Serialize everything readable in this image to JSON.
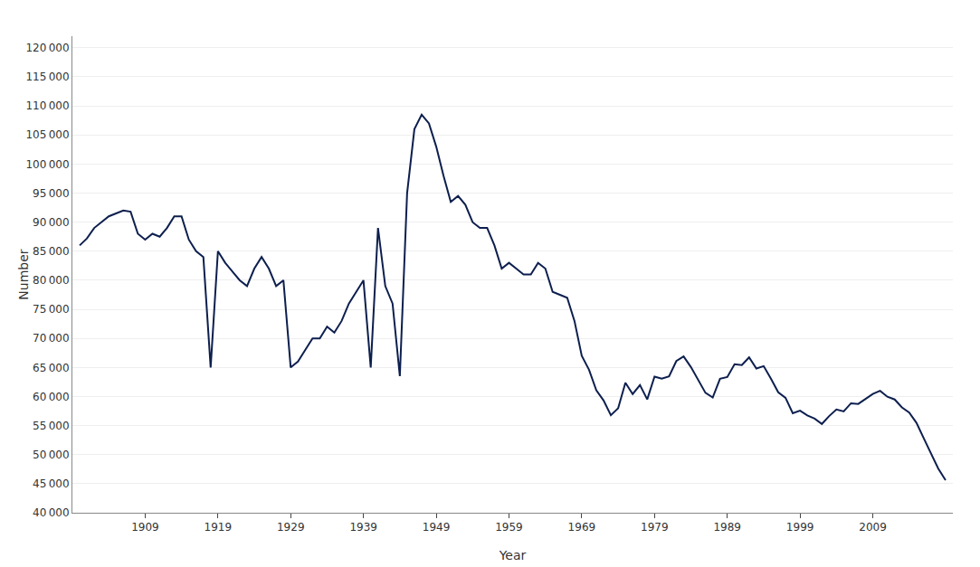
{
  "chart_data": {
    "type": "line",
    "ylabel": "Number",
    "xlabel": "Year",
    "color": "#0d1f4e",
    "grid": "y",
    "xlim": [
      1899,
      2020
    ],
    "xticks": [
      1909,
      1919,
      1929,
      1939,
      1949,
      1959,
      1969,
      1979,
      1989,
      1999,
      2009
    ],
    "ylim": [
      40000,
      122000
    ],
    "yticks": [
      {
        "value": 40000,
        "label": "40 000"
      },
      {
        "value": 45000,
        "label": "45 000"
      },
      {
        "value": 50000,
        "label": "50 000"
      },
      {
        "value": 55000,
        "label": "55 000"
      },
      {
        "value": 60000,
        "label": "60 000"
      },
      {
        "value": 65000,
        "label": "65 000"
      },
      {
        "value": 70000,
        "label": "70 000"
      },
      {
        "value": 75000,
        "label": "75 000"
      },
      {
        "value": 80000,
        "label": "80 000"
      },
      {
        "value": 85000,
        "label": "85 000"
      },
      {
        "value": 90000,
        "label": "90 000"
      },
      {
        "value": 95000,
        "label": "95 000"
      },
      {
        "value": 100000,
        "label": "100 000"
      },
      {
        "value": 105000,
        "label": "105 000"
      },
      {
        "value": 110000,
        "label": "110 000"
      },
      {
        "value": 115000,
        "label": "115 000"
      },
      {
        "value": 120000,
        "label": "120 000"
      }
    ],
    "x": [
      1900,
      1901,
      1902,
      1903,
      1904,
      1905,
      1906,
      1907,
      1908,
      1909,
      1910,
      1911,
      1912,
      1913,
      1914,
      1915,
      1916,
      1917,
      1918,
      1919,
      1920,
      1921,
      1922,
      1923,
      1924,
      1925,
      1926,
      1927,
      1928,
      1929,
      1930,
      1931,
      1932,
      1933,
      1934,
      1935,
      1936,
      1937,
      1938,
      1939,
      1940,
      1941,
      1942,
      1943,
      1944,
      1945,
      1946,
      1947,
      1948,
      1949,
      1950,
      1951,
      1952,
      1953,
      1954,
      1955,
      1956,
      1957,
      1958,
      1959,
      1960,
      1961,
      1962,
      1963,
      1964,
      1965,
      1966,
      1967,
      1968,
      1969,
      1970,
      1971,
      1972,
      1973,
      1974,
      1975,
      1976,
      1977,
      1978,
      1979,
      1980,
      1981,
      1982,
      1983,
      1984,
      1985,
      1986,
      1987,
      1988,
      1989,
      1990,
      1991,
      1992,
      1993,
      1994,
      1995,
      1996,
      1997,
      1998,
      1999,
      2000,
      2001,
      2002,
      2003,
      2004,
      2005,
      2006,
      2007,
      2008,
      2009,
      2010,
      2011,
      2012,
      2013,
      2014,
      2015,
      2016,
      2017,
      2018,
      2019
    ],
    "values": [
      86000,
      87200,
      89000,
      90000,
      91000,
      91500,
      92000,
      91800,
      88000,
      87000,
      88000,
      87500,
      89000,
      91000,
      91000,
      87000,
      85000,
      84000,
      65000,
      85000,
      83000,
      81500,
      80000,
      79000,
      82000,
      84000,
      82000,
      79000,
      80000,
      65000,
      66000,
      68000,
      70000,
      70000,
      72000,
      71000,
      73000,
      76000,
      78000,
      80000,
      65000,
      89000,
      79000,
      76000,
      63500,
      95000,
      106000,
      108500,
      107000,
      103000,
      98000,
      93500,
      94500,
      93000,
      90000,
      89000,
      89000,
      86000,
      82000,
      83000,
      82000,
      81000,
      81000,
      83000,
      82000,
      78000,
      77500,
      77000,
      73000,
      67000,
      64600,
      61067,
      59321,
      56787,
      57979,
      62373,
      60428,
      61960,
      59512,
      63428,
      63067,
      63469,
      66106,
      66892,
      65076,
      62796,
      60632,
      59827,
      63049,
      63348,
      65549,
      65395,
      66731,
      64826,
      65231,
      63067,
      60723,
      59771,
      57108,
      57574,
      56742,
      56189,
      55280,
      56630,
      57758,
      57427,
      58840,
      58729,
      59530,
      60430,
      60980,
      59961,
      59493,
      58134,
      57232,
      55472,
      52814,
      50321,
      47577,
      45613
    ]
  }
}
